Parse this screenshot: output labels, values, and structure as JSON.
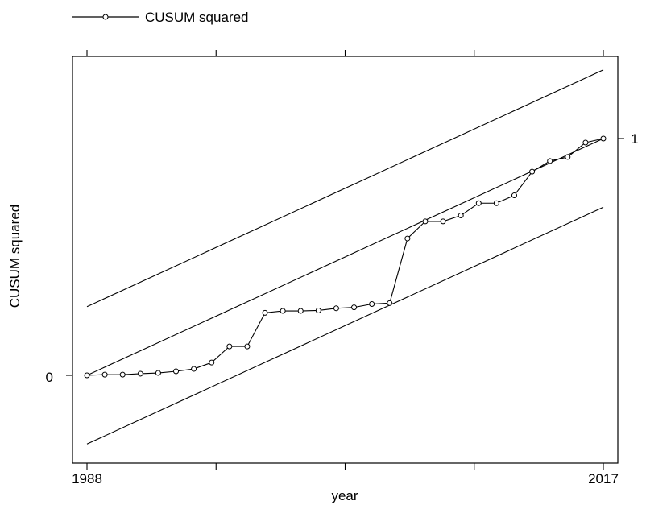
{
  "chart_data": {
    "type": "line",
    "title": "",
    "xlabel": "year",
    "ylabel": "CUSUM squared",
    "x_ticks_labeled": [
      "1988",
      "2017"
    ],
    "y_ticks_labeled": [
      "0",
      "1"
    ],
    "xlim": [
      1988,
      2017
    ],
    "ylim": [
      -0.29,
      1.38
    ],
    "grid": false,
    "legend": {
      "placement": "top-left",
      "entries": [
        "CUSUM squared"
      ]
    },
    "series": [
      {
        "name": "CUSUM squared",
        "marker": "circle",
        "x": [
          1988,
          1989,
          1990,
          1991,
          1992,
          1993,
          1994,
          1995,
          1996,
          1997,
          1998,
          1999,
          2000,
          2001,
          2002,
          2003,
          2004,
          2005,
          2006,
          2007,
          2008,
          2009,
          2010,
          2011,
          2012,
          2013,
          2014,
          2015,
          2016,
          2017
        ],
        "y": [
          0.0,
          0.003,
          0.003,
          0.007,
          0.01,
          0.017,
          0.027,
          0.054,
          0.122,
          0.122,
          0.264,
          0.272,
          0.272,
          0.274,
          0.283,
          0.287,
          0.301,
          0.305,
          0.578,
          0.65,
          0.65,
          0.675,
          0.727,
          0.727,
          0.76,
          0.86,
          0.905,
          0.922,
          0.983,
          1.0
        ]
      },
      {
        "name": "",
        "role": "expected",
        "x": [
          1988,
          2017
        ],
        "y": [
          0.0,
          1.0
        ]
      },
      {
        "name": "",
        "role": "upper-bound",
        "x": [
          1988,
          2017
        ],
        "y": [
          0.29,
          1.29
        ]
      },
      {
        "name": "",
        "role": "lower-bound",
        "x": [
          1988,
          2017
        ],
        "y": [
          -0.29,
          0.71
        ]
      }
    ]
  }
}
